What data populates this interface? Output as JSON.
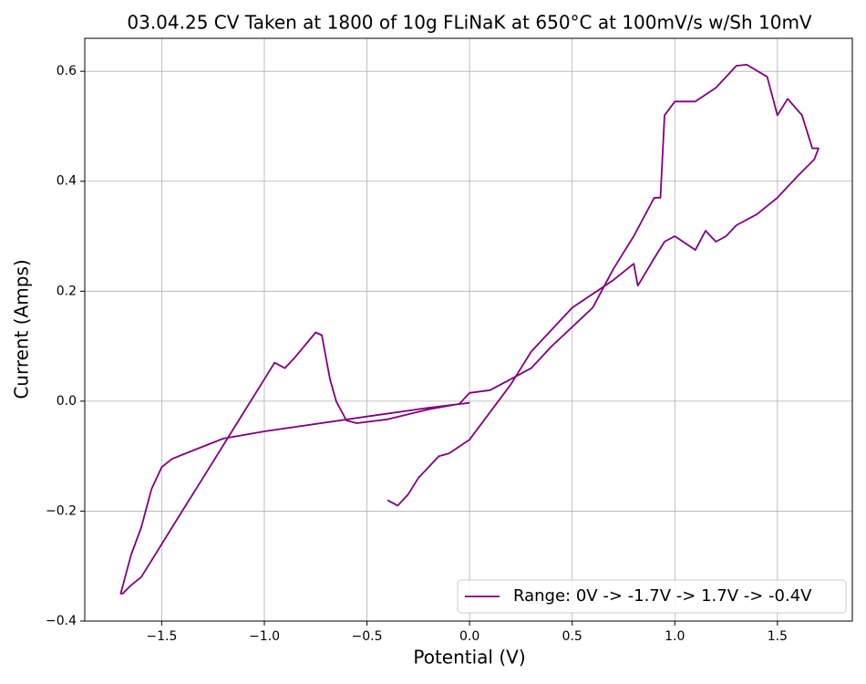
{
  "chart_data": {
    "type": "line",
    "title": "03.04.25 CV Taken at 1800 of 10g FLiNaK at 650°C at 100mV/s w/Sh 10mV",
    "xlabel": "Potential (V)",
    "ylabel": "Current (Amps)",
    "xlim": [
      -1.875,
      1.865
    ],
    "ylim": [
      -0.4,
      0.66
    ],
    "xticks": [
      {
        "value": -1.5,
        "label": "−1.5"
      },
      {
        "value": -1.0,
        "label": "−1.0"
      },
      {
        "value": -0.5,
        "label": "−0.5"
      },
      {
        "value": 0,
        "label": "0.0"
      },
      {
        "value": 0.5,
        "label": "0.5"
      },
      {
        "value": 1.0,
        "label": "1.0"
      },
      {
        "value": 1.5,
        "label": "1.5"
      }
    ],
    "yticks": [
      {
        "value": -0.4,
        "label": "−0.4"
      },
      {
        "value": -0.2,
        "label": "−0.2"
      },
      {
        "value": 0,
        "label": "0.0"
      },
      {
        "value": 0.2,
        "label": "0.2"
      },
      {
        "value": 0.4,
        "label": "0.4"
      },
      {
        "value": 0.6,
        "label": "0.6"
      }
    ],
    "grid": true,
    "legend": "lower right",
    "series": [
      {
        "name": "Range: 0V -> -1.7V -> 1.7V -> -0.4V",
        "color": "#800080",
        "x": [
          0,
          -0.2,
          -0.5,
          -1.0,
          -1.2,
          -1.35,
          -1.45,
          -1.5,
          -1.55,
          -1.6,
          -1.65,
          -1.7,
          -1.69,
          -1.65,
          -1.6,
          -1.5,
          -1.4,
          -1.3,
          -1.2,
          -1.1,
          -1.0,
          -0.95,
          -0.9,
          -0.85,
          -0.75,
          -0.72,
          -0.68,
          -0.65,
          -0.6,
          -0.55,
          -0.4,
          -0.2,
          -0.05,
          0,
          0.1,
          0.2,
          0.3,
          0.4,
          0.6,
          0.7,
          0.8,
          0.9,
          0.93,
          0.95,
          1.0,
          1.1,
          1.2,
          1.3,
          1.35,
          1.45,
          1.5,
          1.55,
          1.62,
          1.67,
          1.7,
          1.68,
          1.6,
          1.5,
          1.4,
          1.3,
          1.25,
          1.2,
          1.15,
          1.1,
          1.0,
          0.95,
          0.9,
          0.82,
          0.8,
          0.7,
          0.5,
          0.3,
          0.2,
          0.1,
          0,
          -0.1,
          -0.15,
          -0.25,
          -0.3,
          -0.35,
          -0.4
        ],
        "values": [
          -0.003,
          -0.012,
          -0.028,
          -0.055,
          -0.068,
          -0.09,
          -0.105,
          -0.12,
          -0.16,
          -0.23,
          -0.28,
          -0.35,
          -0.35,
          -0.335,
          -0.32,
          -0.26,
          -0.2,
          -0.14,
          -0.08,
          -0.02,
          0.04,
          0.07,
          0.06,
          0.08,
          0.125,
          0.12,
          0.04,
          0.0,
          -0.035,
          -0.04,
          -0.033,
          -0.015,
          -0.005,
          0.015,
          0.02,
          0.04,
          0.06,
          0.1,
          0.17,
          0.24,
          0.3,
          0.37,
          0.37,
          0.52,
          0.545,
          0.545,
          0.57,
          0.61,
          0.612,
          0.59,
          0.52,
          0.55,
          0.52,
          0.46,
          0.46,
          0.44,
          0.41,
          0.37,
          0.34,
          0.32,
          0.3,
          0.29,
          0.31,
          0.275,
          0.3,
          0.29,
          0.26,
          0.21,
          0.25,
          0.22,
          0.17,
          0.09,
          0.03,
          -0.02,
          -0.07,
          -0.095,
          -0.1,
          -0.14,
          -0.17,
          -0.19,
          -0.18
        ]
      }
    ]
  }
}
